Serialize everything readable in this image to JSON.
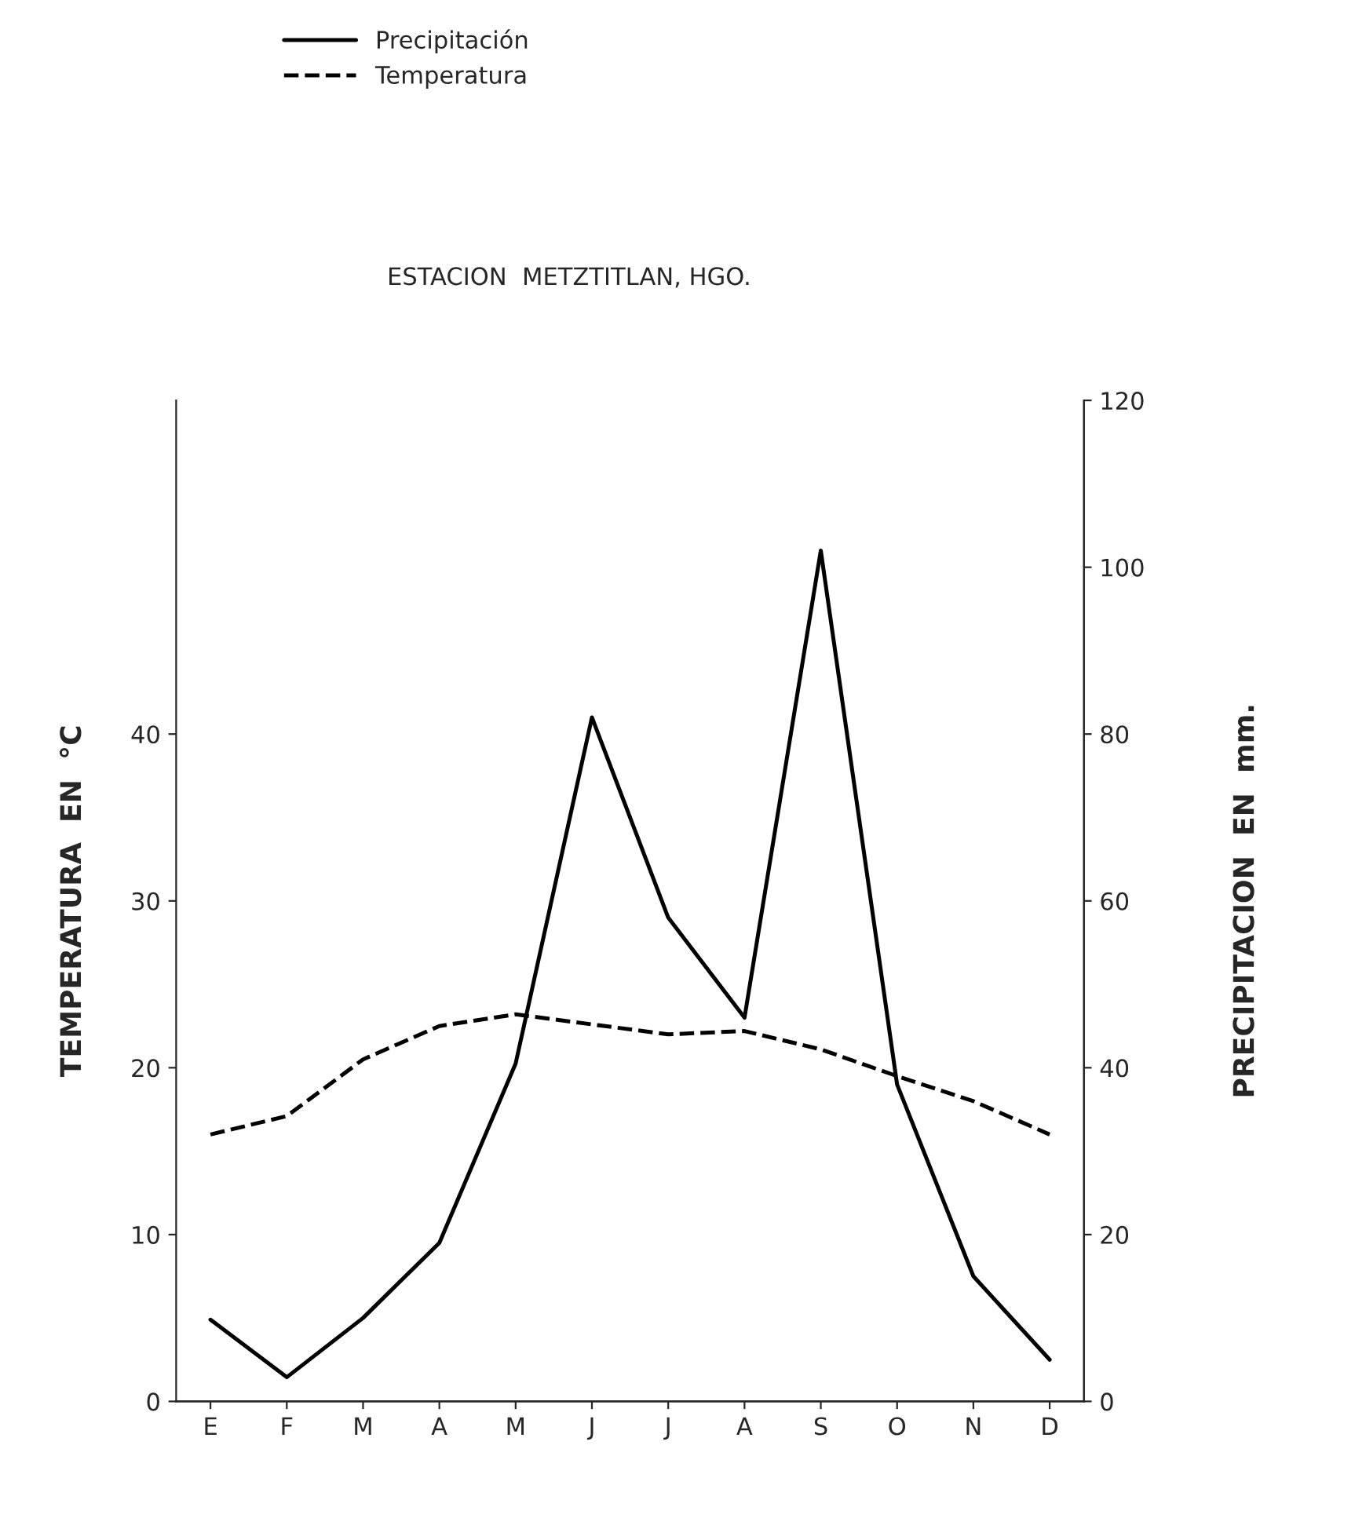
{
  "chart_data": {
    "type": "line",
    "title": "ESTACION  METZTITLAN, HGO.",
    "ylabel": "TEMPERATURA  EN  °C",
    "y2label": "PRECIPITACION  EN  mm.",
    "categories": [
      "E",
      "F",
      "M",
      "A",
      "M",
      "J",
      "J",
      "A",
      "S",
      "O",
      "N",
      "D"
    ],
    "series": [
      {
        "name": "Precipitación",
        "color": "#000000",
        "line_style": "solid",
        "axis": "y2",
        "values": [
          9.8,
          2.9,
          10,
          19,
          40.5,
          82,
          58,
          46,
          102,
          38,
          15,
          5
        ]
      },
      {
        "name": "Temperatura",
        "color": "#000000",
        "line_style": "dashed",
        "values": [
          16,
          17.1,
          20.5,
          22.5,
          23.2,
          22.6,
          22,
          22.2,
          21.1,
          19.5,
          18,
          16
        ]
      }
    ],
    "ylim": [
      0,
      60
    ],
    "yticks": [
      0,
      10,
      20,
      30,
      40
    ],
    "y2lim": [
      0,
      120
    ],
    "y2ticks": [
      0,
      20,
      40,
      60,
      80,
      100,
      120
    ],
    "grid": false,
    "legend": "top",
    "marker": "none"
  }
}
